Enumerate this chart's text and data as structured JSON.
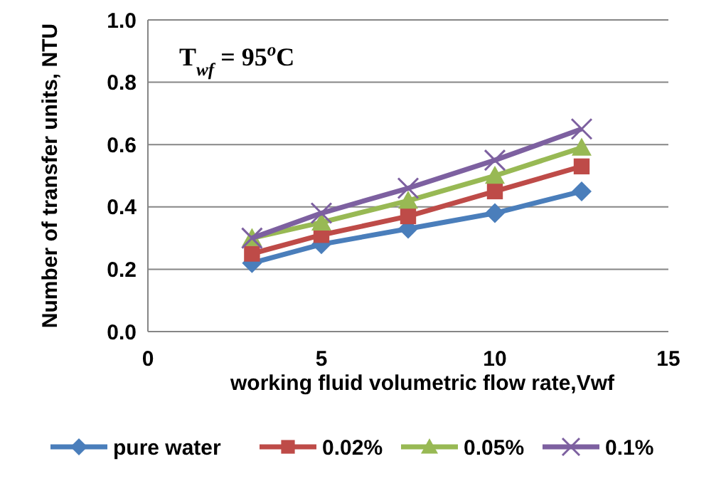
{
  "chart_data": {
    "type": "line",
    "xlabel": "working fluid volumetric flow rate,Vwf",
    "ylabel": "Number of transfer units, NTU",
    "annotations": [
      "T$_{wf}$ = 95$^{o}$C"
    ],
    "x": [
      3,
      5,
      7.5,
      10,
      12.5
    ],
    "series": [
      {
        "name": "pure water",
        "color": "#4a7ebb",
        "marker": "diamond",
        "values": [
          0.22,
          0.28,
          0.33,
          0.38,
          0.45
        ]
      },
      {
        "name": "0.02%",
        "color": "#be4b48",
        "marker": "square",
        "values": [
          0.25,
          0.31,
          0.37,
          0.45,
          0.53
        ]
      },
      {
        "name": "0.05%",
        "color": "#98b954",
        "marker": "triangle",
        "values": [
          0.3,
          0.35,
          0.42,
          0.5,
          0.59
        ]
      },
      {
        "name": "0.1%",
        "color": "#7d60a0",
        "marker": "cross",
        "values": [
          0.3,
          0.38,
          0.46,
          0.55,
          0.65
        ]
      }
    ],
    "xlim": [
      0,
      15
    ],
    "xticks": [
      0,
      5,
      10,
      15
    ],
    "ylim": [
      0,
      1
    ],
    "yticks": [
      {
        "value": 0,
        "label": "0.0"
      },
      {
        "value": 0.2,
        "label": "0.2"
      },
      {
        "value": 0.4,
        "label": "0.4"
      },
      {
        "value": 0.6,
        "label": "0.6"
      },
      {
        "value": 0.8,
        "label": "0.8"
      },
      {
        "value": 1,
        "label": "1.0"
      }
    ],
    "grid": "y",
    "legend": "bottom"
  }
}
